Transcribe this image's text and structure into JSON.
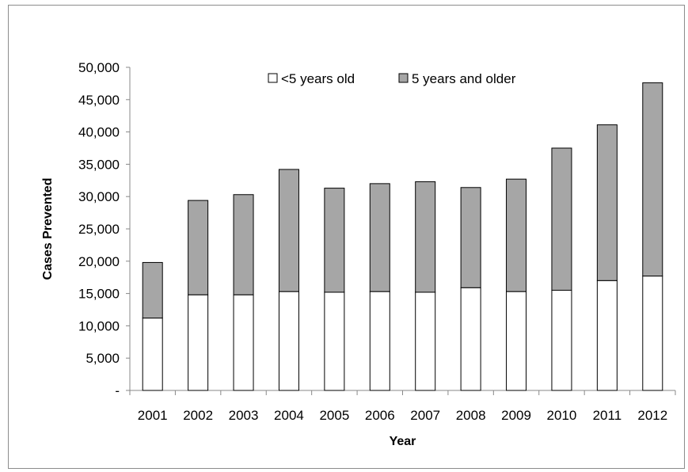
{
  "chart_data": {
    "type": "bar",
    "stacked": true,
    "title": "",
    "xlabel": "Year",
    "ylabel": "Cases Prevented",
    "ylim": [
      0,
      50000
    ],
    "yticks": [
      0,
      5000,
      10000,
      15000,
      20000,
      25000,
      30000,
      35000,
      40000,
      45000,
      50000
    ],
    "ytick_labels": [
      "-",
      "5,000",
      "10,000",
      "15,000",
      "20,000",
      "25,000",
      "30,000",
      "35,000",
      "40,000",
      "45,000",
      "50,000"
    ],
    "categories": [
      "2001",
      "2002",
      "2003",
      "2004",
      "2005",
      "2006",
      "2007",
      "2008",
      "2009",
      "2010",
      "2011",
      "2012"
    ],
    "series": [
      {
        "name": "<5 years old",
        "color": "#ffffff",
        "values": [
          11200,
          14800,
          14800,
          15300,
          15200,
          15300,
          15200,
          15900,
          15300,
          15500,
          17000,
          17700
        ]
      },
      {
        "name": "5 years and older",
        "color": "#a6a6a6",
        "values": [
          8600,
          14600,
          15500,
          18900,
          16100,
          16700,
          17100,
          15500,
          17400,
          22000,
          24100,
          29900
        ]
      }
    ],
    "legend_position": "top",
    "grid": false
  }
}
